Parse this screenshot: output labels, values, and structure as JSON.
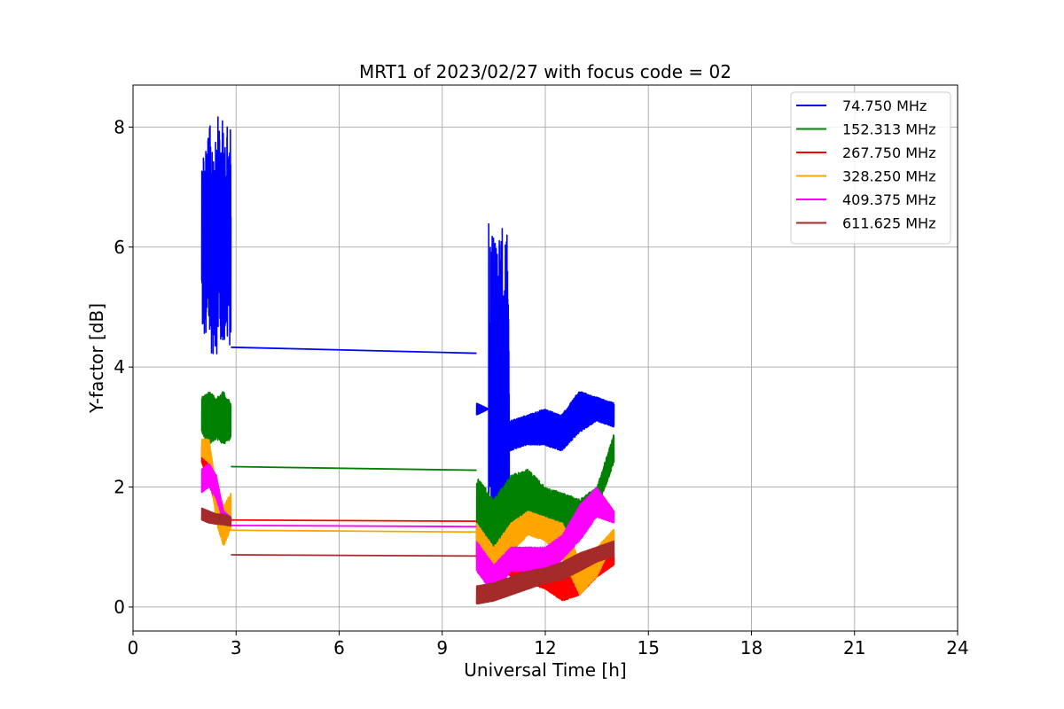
{
  "chart_data": {
    "type": "line",
    "title": "MRT1 of 2023/02/27 with focus code = 02",
    "xlabel": "Universal Time [h]",
    "ylabel": "Y-factor [dB]",
    "xlim": [
      0,
      24
    ],
    "ylim": [
      -0.4,
      8.7
    ],
    "xticks": [
      0,
      3,
      6,
      9,
      12,
      15,
      18,
      21,
      24
    ],
    "yticks": [
      0,
      2,
      4,
      6,
      8
    ],
    "grid": true,
    "legend_position": "top-right",
    "segments": [
      {
        "start": 2.0,
        "end": 2.85
      },
      {
        "start": 10.0,
        "end": 14.0
      }
    ],
    "series": [
      {
        "name": " 74.750 MHz",
        "color": "#0000ff",
        "bands": [
          {
            "x0": 2.0,
            "x1": 2.85,
            "lo": [
              4.5,
              4.2,
              4.2,
              4.3,
              4.3
            ],
            "hi": [
              7.7,
              8.0,
              8.2,
              8.1,
              8.0
            ],
            "amp": 0.9
          },
          {
            "x0": 10.0,
            "x1": 10.35,
            "lo": [
              3.2,
              3.3
            ],
            "hi": [
              3.4,
              3.3
            ],
            "amp": 0.05
          },
          {
            "x0": 10.35,
            "x1": 10.95,
            "lo": [
              0.1,
              0.2,
              0.5,
              0.4,
              0.1
            ],
            "hi": [
              6.4,
              6.3,
              6.2,
              6.5,
              6.0
            ],
            "amp": 0.9
          },
          {
            "x0": 10.95,
            "x1": 14.0,
            "lo": [
              2.6,
              2.7,
              2.7,
              2.6,
              2.9,
              3.1,
              3.0
            ],
            "hi": [
              3.1,
              3.2,
              3.3,
              3.2,
              3.6,
              3.5,
              3.4
            ],
            "amp": 0.15
          }
        ],
        "gap_line": [
          [
            2.85,
            4.33
          ],
          [
            10.0,
            4.23
          ]
        ]
      },
      {
        "name": "152.313 MHz",
        "color": "#008000",
        "bands": [
          {
            "x0": 2.0,
            "x1": 2.85,
            "lo": [
              2.9,
              2.7,
              2.8,
              2.7,
              2.8
            ],
            "hi": [
              3.5,
              3.6,
              3.5,
              3.6,
              3.4
            ],
            "amp": 0.25
          },
          {
            "x0": 10.0,
            "x1": 14.0,
            "lo": [
              0.8,
              0.9,
              1.4,
              1.5,
              1.2,
              1.3,
              1.2,
              1.6,
              2.4
            ],
            "hi": [
              2.2,
              1.8,
              2.2,
              2.3,
              2.0,
              1.9,
              1.8,
              2.0,
              2.9
            ],
            "amp": 0.25
          }
        ],
        "gap_line": [
          [
            2.85,
            2.34
          ],
          [
            10.0,
            2.28
          ]
        ]
      },
      {
        "name": "267.750 MHz",
        "color": "#ff0000",
        "bands": [
          {
            "x0": 2.0,
            "x1": 2.85,
            "lo": [
              2.4,
              2.1,
              1.6,
              1.4,
              1.4
            ],
            "hi": [
              2.7,
              2.4,
              1.9,
              1.6,
              1.5
            ],
            "amp": 0.1
          },
          {
            "x0": 10.0,
            "x1": 14.0,
            "lo": [
              0.8,
              0.8,
              0.5,
              0.4,
              0.3,
              0.1,
              0.2,
              0.5,
              0.7
            ],
            "hi": [
              1.1,
              1.0,
              0.9,
              0.7,
              0.6,
              0.6,
              0.4,
              0.7,
              0.9
            ],
            "amp": 0.1
          }
        ],
        "gap_line": [
          [
            2.85,
            1.45
          ],
          [
            10.0,
            1.43
          ]
        ]
      },
      {
        "name": "328.250 MHz",
        "color": "#ffa500",
        "bands": [
          {
            "x0": 2.0,
            "x1": 2.85,
            "lo": [
              2.5,
              2.4,
              1.4,
              1.0,
              1.3
            ],
            "hi": [
              2.8,
              2.8,
              2.0,
              1.7,
              1.9
            ],
            "amp": 0.15
          },
          {
            "x0": 10.0,
            "x1": 14.0,
            "lo": [
              0.8,
              0.4,
              0.9,
              1.2,
              1.1,
              0.8,
              0.2,
              0.5,
              1.1
            ],
            "hi": [
              1.4,
              1.0,
              1.4,
              1.6,
              1.5,
              1.4,
              0.8,
              1.0,
              1.3
            ],
            "amp": 0.15
          }
        ],
        "gap_line": [
          [
            2.85,
            1.28
          ],
          [
            10.0,
            1.25
          ]
        ]
      },
      {
        "name": "409.375 MHz",
        "color": "#ff00ff",
        "bands": [
          {
            "x0": 2.0,
            "x1": 2.85,
            "lo": [
              1.9,
              2.0,
              1.8,
              1.4,
              1.4
            ],
            "hi": [
              2.3,
              2.4,
              2.2,
              1.6,
              1.5
            ],
            "amp": 0.12
          },
          {
            "x0": 10.0,
            "x1": 14.0,
            "lo": [
              0.6,
              0.2,
              0.6,
              0.6,
              0.5,
              0.8,
              1.1,
              1.5,
              1.4
            ],
            "hi": [
              1.1,
              0.7,
              1.0,
              1.0,
              1.0,
              1.2,
              1.7,
              2.0,
              1.6
            ],
            "amp": 0.12
          }
        ],
        "gap_line": [
          [
            2.85,
            1.36
          ],
          [
            10.0,
            1.34
          ]
        ]
      },
      {
        "name": "611.625 MHz",
        "color": "#a52a2a",
        "bands": [
          {
            "x0": 2.0,
            "x1": 2.85,
            "lo": [
              1.45,
              1.4,
              1.38,
              1.37,
              1.35
            ],
            "hi": [
              1.65,
              1.6,
              1.55,
              1.55,
              1.5
            ],
            "amp": 0.05
          },
          {
            "x0": 10.0,
            "x1": 14.0,
            "lo": [
              0.05,
              0.1,
              0.2,
              0.3,
              0.4,
              0.45,
              0.6,
              0.75,
              0.85
            ],
            "hi": [
              0.35,
              0.4,
              0.5,
              0.6,
              0.65,
              0.75,
              0.9,
              1.0,
              1.1
            ],
            "amp": 0.05
          }
        ],
        "gap_line": [
          [
            2.85,
            0.87
          ],
          [
            10.0,
            0.85
          ]
        ]
      }
    ]
  }
}
